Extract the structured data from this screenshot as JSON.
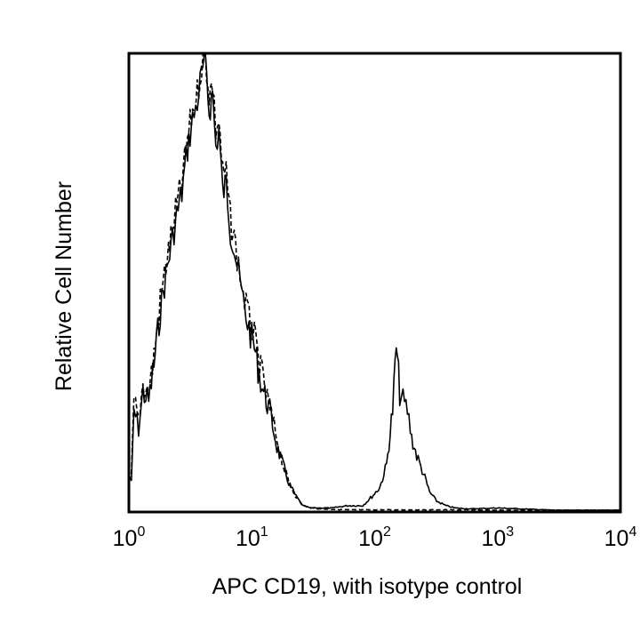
{
  "chart_data": {
    "type": "line",
    "title": "",
    "xlabel": "APC CD19, with isotype control",
    "ylabel": "Relative Cell Number",
    "x_scale": "log10",
    "xlim": [
      1,
      10000
    ],
    "ylim": [
      0,
      100
    ],
    "grid": false,
    "x_ticks": [
      {
        "base": "10",
        "exp": "0",
        "value": 1
      },
      {
        "base": "10",
        "exp": "1",
        "value": 10
      },
      {
        "base": "10",
        "exp": "2",
        "value": 100
      },
      {
        "base": "10",
        "exp": "3",
        "value": 1000
      },
      {
        "base": "10",
        "exp": "4",
        "value": 10000
      }
    ],
    "series": [
      {
        "style": "solid",
        "color": "#000000",
        "x": [
          1.0,
          1.05,
          1.1,
          1.2,
          1.3,
          1.45,
          1.6,
          1.8,
          2.0,
          2.2,
          2.4,
          2.7,
          3.0,
          3.3,
          3.6,
          3.9,
          4.2,
          4.5,
          4.8,
          5.1,
          5.4,
          5.8,
          6.2,
          6.7,
          7.2,
          7.8,
          8.5,
          9.5,
          10.5,
          11.5,
          12.5,
          14,
          16,
          18,
          20,
          23,
          26,
          30,
          35,
          45,
          60,
          80,
          95,
          110,
          125,
          140,
          150,
          160,
          170,
          185,
          200,
          220,
          250,
          280,
          320,
          380,
          450,
          600,
          1000,
          3000,
          10000
        ],
        "y": [
          8,
          6,
          22,
          18,
          26,
          24,
          32,
          44,
          52,
          58,
          64,
          70,
          80,
          86,
          90,
          96,
          100,
          88,
          92,
          80,
          84,
          70,
          72,
          62,
          58,
          52,
          46,
          40,
          36,
          30,
          26,
          22,
          14,
          10,
          6,
          3,
          1,
          0.5,
          0.5,
          0.5,
          1,
          1,
          3,
          5,
          10,
          22,
          36,
          26,
          24,
          22,
          16,
          12,
          8,
          4,
          2,
          1,
          0.5,
          0.3,
          0.5,
          0,
          0
        ]
      },
      {
        "style": "dashed",
        "color": "#000000",
        "x": [
          1.0,
          1.05,
          1.1,
          1.2,
          1.3,
          1.45,
          1.6,
          1.8,
          2.0,
          2.2,
          2.4,
          2.7,
          3.0,
          3.3,
          3.6,
          3.9,
          4.2,
          4.5,
          4.8,
          5.1,
          5.4,
          5.8,
          6.2,
          6.7,
          7.2,
          7.8,
          8.5,
          9.5,
          10.5,
          11.5,
          12.5,
          14,
          16,
          18,
          20,
          23,
          26,
          30,
          35,
          45,
          60,
          100,
          200,
          400,
          1000,
          10000
        ],
        "y": [
          6,
          8,
          24,
          20,
          28,
          26,
          34,
          46,
          54,
          60,
          66,
          72,
          82,
          88,
          92,
          98,
          100,
          92,
          94,
          84,
          86,
          74,
          74,
          64,
          60,
          54,
          48,
          42,
          38,
          32,
          28,
          22,
          16,
          10,
          6,
          3,
          1,
          0.5,
          0.3,
          0.2,
          0.1,
          0.1,
          0.1,
          0.1,
          0,
          0
        ]
      }
    ]
  }
}
